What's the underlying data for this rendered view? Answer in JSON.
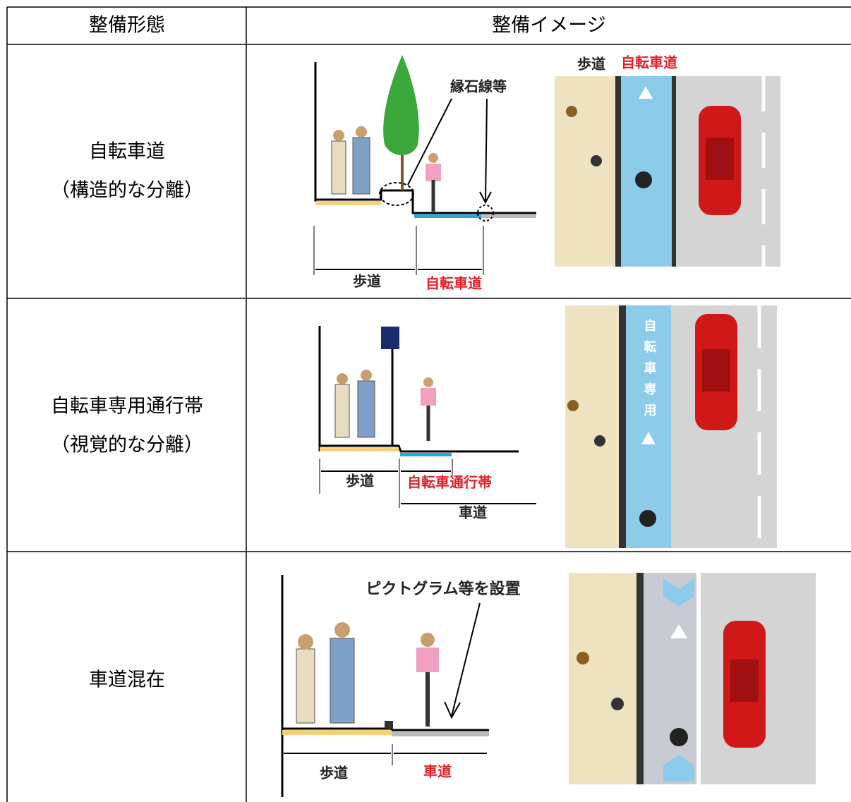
{
  "table": {
    "header": [
      "整備形態",
      "整備イメージ"
    ],
    "rows": [
      {
        "type": [
          "自転車道",
          "（構造的な分離）"
        ],
        "section": {
          "callout": "縁石線等",
          "labels": [
            "歩道",
            "自転車道"
          ]
        },
        "plan": {
          "labels": [
            "歩道",
            "自転車道"
          ]
        }
      },
      {
        "type": [
          "自転車専用通行帯",
          "（視覚的な分離）"
        ],
        "section": {
          "labels": [
            "歩道",
            "自転車通行帯",
            "車道"
          ]
        },
        "plan": {
          "lane_text": "自転車専用"
        }
      },
      {
        "type": [
          "車道混在"
        ],
        "section": {
          "callout": "ピクトグラム等を設置",
          "labels": [
            "歩道",
            "車道"
          ]
        }
      }
    ]
  }
}
